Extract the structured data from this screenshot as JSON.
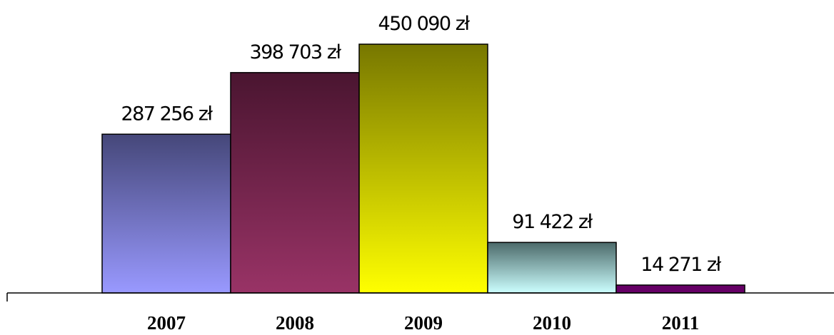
{
  "chart_data": {
    "type": "bar",
    "categories": [
      "2007",
      "2008",
      "2009",
      "2010",
      "2011"
    ],
    "values": [
      287256,
      398703,
      450090,
      91422,
      14271
    ],
    "value_labels": [
      "287 256 zł",
      "398 703 zł",
      "450 090 zł",
      "91 422 zł",
      "14 271 zł"
    ],
    "title": "",
    "xlabel": "",
    "ylabel": "",
    "ylim": [
      0,
      450090
    ],
    "grid": false,
    "legend": "none",
    "bar_colors": [
      {
        "top": "#454779",
        "bottom": "#9999ff"
      },
      {
        "top": "#4a1530",
        "bottom": "#993366"
      },
      {
        "top": "#777700",
        "bottom": "#ffff00"
      },
      {
        "top": "#4c6a6a",
        "bottom": "#ccffff"
      },
      {
        "top": "#660066",
        "bottom": "#660066"
      }
    ],
    "bar_border_color": "#000000",
    "axis_color": "#000000"
  }
}
